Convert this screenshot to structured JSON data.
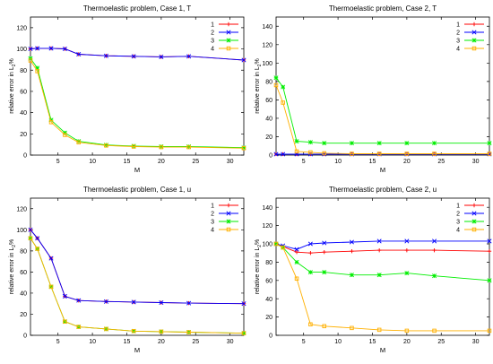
{
  "colors": {
    "s1": "#ff0000",
    "s2": "#0000ff",
    "s3": "#00ee00",
    "s4": "#ffb000",
    "axis": "#000000",
    "grid": "#b0b0b0"
  },
  "chart_data": [
    {
      "type": "line",
      "title": "Thermoelastic problem, Case 1, T",
      "xlabel": "M",
      "ylabel_main": "relative error in L",
      "ylabel_sub": "2",
      "ylabel_suffix": "%",
      "xlim": [
        1,
        32
      ],
      "ylim": [
        0,
        130
      ],
      "xticks": [
        5,
        10,
        15,
        20,
        25,
        30
      ],
      "yticks": [
        0,
        20,
        40,
        60,
        80,
        100,
        120
      ],
      "grid": false,
      "legend_position": "top-right",
      "series": [
        {
          "name": "1",
          "x": [
            1,
            2,
            4,
            6,
            8,
            12,
            16,
            20,
            24,
            32
          ],
          "y": [
            100,
            100.5,
            100.5,
            100,
            95,
            93.5,
            93,
            92.5,
            93,
            89.5
          ]
        },
        {
          "name": "2",
          "x": [
            1,
            2,
            4,
            6,
            8,
            12,
            16,
            20,
            24,
            32
          ],
          "y": [
            100,
            100.5,
            100.5,
            100,
            95,
            93.5,
            93,
            92.5,
            93,
            89.5
          ]
        },
        {
          "name": "3",
          "x": [
            1,
            2,
            4,
            6,
            8,
            12,
            16,
            20,
            24,
            32
          ],
          "y": [
            91,
            82,
            33,
            21,
            13,
            9.5,
            8.5,
            8,
            8,
            7
          ]
        },
        {
          "name": "4",
          "x": [
            1,
            2,
            4,
            6,
            8,
            12,
            16,
            20,
            24,
            32
          ],
          "y": [
            89,
            79,
            31,
            19,
            12,
            9,
            8,
            7.5,
            7.5,
            6.5
          ]
        }
      ]
    },
    {
      "type": "line",
      "title": "Thermoelastic problem, Case 2, T",
      "xlabel": "M",
      "ylabel_main": "relative error in L",
      "ylabel_sub": "2",
      "ylabel_suffix": "%",
      "xlim": [
        1,
        32
      ],
      "ylim": [
        0,
        150
      ],
      "xticks": [
        5,
        10,
        15,
        20,
        25,
        30
      ],
      "yticks": [
        0,
        20,
        40,
        60,
        80,
        100,
        120,
        140
      ],
      "grid": false,
      "legend_position": "top-right",
      "series": [
        {
          "name": "1",
          "x": [
            1,
            2,
            4,
            6,
            8,
            12,
            16,
            20,
            24,
            32
          ],
          "y": [
            1,
            1,
            1,
            1,
            1,
            1,
            1,
            1,
            1,
            1
          ]
        },
        {
          "name": "2",
          "x": [
            1,
            2,
            4,
            6,
            8,
            12,
            16,
            20,
            24,
            32
          ],
          "y": [
            1,
            1,
            1,
            1,
            1,
            1,
            1,
            1,
            1,
            1
          ]
        },
        {
          "name": "3",
          "x": [
            1,
            2,
            4,
            6,
            8,
            12,
            16,
            20,
            24,
            32
          ],
          "y": [
            84,
            74,
            15,
            14,
            13,
            13,
            13,
            13,
            13,
            13
          ]
        },
        {
          "name": "4",
          "x": [
            1,
            2,
            4,
            6,
            8,
            12,
            16,
            20,
            24,
            32
          ],
          "y": [
            76,
            57,
            4,
            3,
            2,
            1.5,
            1.5,
            1.5,
            1.5,
            1.5
          ]
        }
      ]
    },
    {
      "type": "line",
      "title": "Thermoelastic problem, Case 1, u",
      "xlabel": "M",
      "ylabel_main": "relative error in L",
      "ylabel_sub": "2",
      "ylabel_suffix": "%",
      "xlim": [
        1,
        32
      ],
      "ylim": [
        0,
        130
      ],
      "xticks": [
        5,
        10,
        15,
        20,
        25,
        30
      ],
      "yticks": [
        0,
        20,
        40,
        60,
        80,
        100,
        120
      ],
      "grid": false,
      "legend_position": "top-right",
      "series": [
        {
          "name": "1",
          "x": [
            1,
            2,
            4,
            6,
            8,
            12,
            16,
            20,
            24,
            32
          ],
          "y": [
            100,
            92,
            73,
            37,
            33,
            32,
            31.5,
            31,
            30.5,
            30
          ]
        },
        {
          "name": "2",
          "x": [
            1,
            2,
            4,
            6,
            8,
            12,
            16,
            20,
            24,
            32
          ],
          "y": [
            100,
            92,
            73,
            37,
            33,
            32,
            31.5,
            31,
            30.5,
            30
          ]
        },
        {
          "name": "3",
          "x": [
            1,
            2,
            4,
            6,
            8,
            12,
            16,
            20,
            24,
            32
          ],
          "y": [
            92,
            82,
            46,
            13,
            8,
            6,
            4,
            3.5,
            3,
            2
          ]
        },
        {
          "name": "4",
          "x": [
            1,
            2,
            4,
            6,
            8,
            12,
            16,
            20,
            24,
            32
          ],
          "y": [
            92,
            82,
            46,
            13,
            8,
            6,
            4,
            3.5,
            3,
            2
          ]
        }
      ]
    },
    {
      "type": "line",
      "title": "Thermoelastic problem, Case 2, u",
      "xlabel": "M",
      "ylabel_main": "relative error in L",
      "ylabel_sub": "2",
      "ylabel_suffix": "%",
      "xlim": [
        1,
        32
      ],
      "ylim": [
        0,
        150
      ],
      "xticks": [
        5,
        10,
        15,
        20,
        25,
        30
      ],
      "yticks": [
        0,
        20,
        40,
        60,
        80,
        100,
        120,
        140
      ],
      "grid": false,
      "legend_position": "top-right",
      "series": [
        {
          "name": "1",
          "x": [
            1,
            2,
            4,
            6,
            8,
            12,
            16,
            20,
            24,
            32
          ],
          "y": [
            100,
            97,
            91,
            90,
            91,
            92,
            93,
            93,
            93,
            92
          ]
        },
        {
          "name": "2",
          "x": [
            1,
            2,
            4,
            6,
            8,
            12,
            16,
            20,
            24,
            32
          ],
          "y": [
            100,
            98,
            94,
            100,
            101,
            102,
            103,
            103,
            103,
            103
          ]
        },
        {
          "name": "3",
          "x": [
            1,
            2,
            4,
            6,
            8,
            12,
            16,
            20,
            24,
            32
          ],
          "y": [
            100,
            96,
            80,
            69,
            69,
            66,
            66,
            68,
            65,
            60
          ]
        },
        {
          "name": "4",
          "x": [
            1,
            2,
            4,
            6,
            8,
            12,
            16,
            20,
            24,
            32
          ],
          "y": [
            100,
            96,
            62,
            12,
            10,
            8,
            6,
            5,
            5,
            5
          ]
        }
      ]
    }
  ]
}
